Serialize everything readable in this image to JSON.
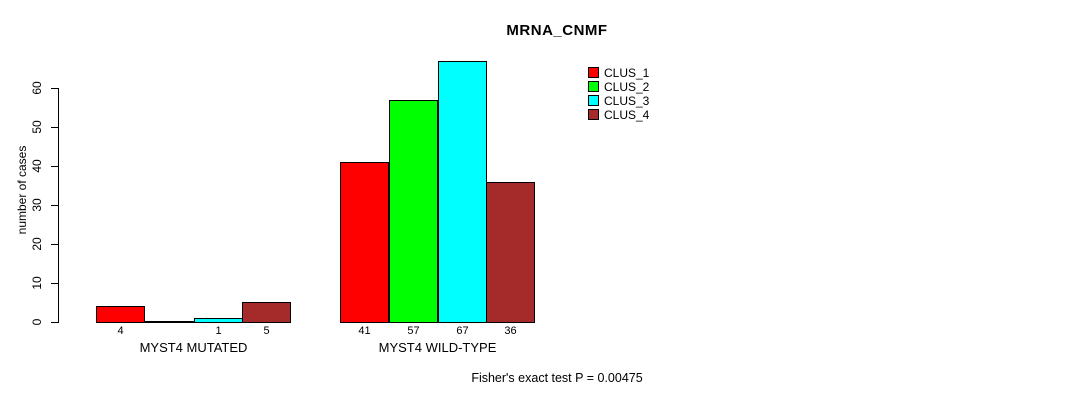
{
  "chart_data": {
    "type": "bar",
    "title": "MRNA_CNMF",
    "ylabel": "number of cases",
    "xlabel": "",
    "ylim": [
      0,
      60
    ],
    "yticks": [
      0,
      10,
      20,
      30,
      40,
      50,
      60
    ],
    "grid": false,
    "legend_position": "top-right",
    "categories": [
      "MYST4 MUTATED",
      "MYST4 WILD-TYPE"
    ],
    "series": [
      {
        "name": "CLUS_1",
        "color": "#FF0000",
        "values": [
          4,
          41
        ]
      },
      {
        "name": "CLUS_2",
        "color": "#00FF00",
        "values": [
          0,
          57
        ]
      },
      {
        "name": "CLUS_3",
        "color": "#00FFFF",
        "values": [
          1,
          67
        ]
      },
      {
        "name": "CLUS_4",
        "color": "#A52A2A",
        "values": [
          5,
          36
        ]
      }
    ],
    "bar_value_labels": [
      [
        "4",
        "",
        "1",
        "5"
      ],
      [
        "41",
        "57",
        "67",
        "36"
      ]
    ],
    "annotation": "Fisher's exact test P = 0.00475"
  }
}
